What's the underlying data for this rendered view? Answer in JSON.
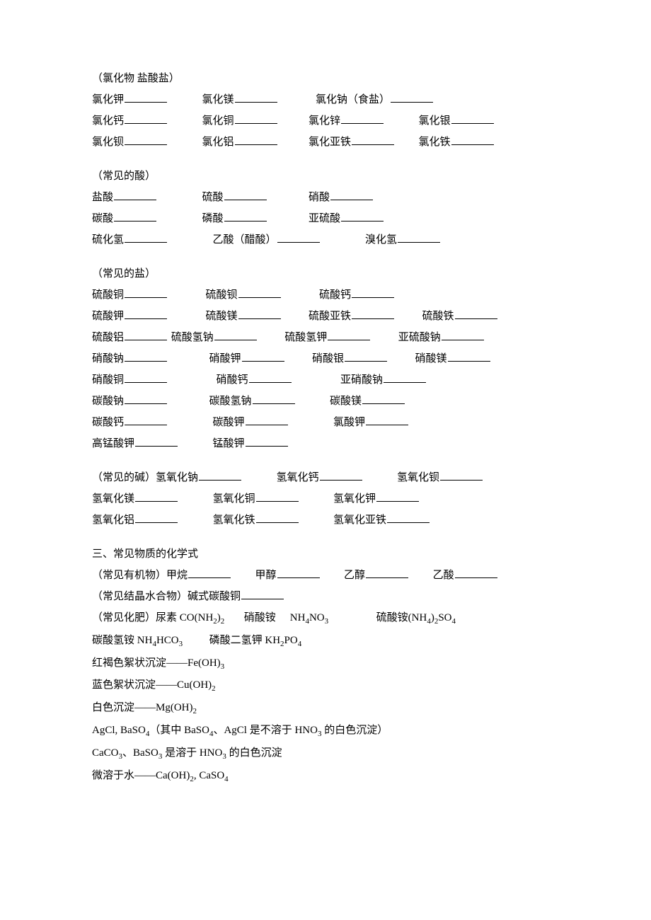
{
  "section_chlorides": {
    "title": "（氯化物 盐酸盐）",
    "row1": [
      "氯化钾",
      "氯化镁",
      "氯化钠（食盐）"
    ],
    "row2": [
      "氯化钙",
      "氯化铜",
      "氯化锌",
      "氯化银"
    ],
    "row3": [
      "氯化钡",
      "氯化铝",
      "氯化亚铁",
      "氯化铁"
    ]
  },
  "section_acids": {
    "title": "（常见的酸）",
    "row1": [
      "盐酸",
      "硫酸",
      "硝酸"
    ],
    "row2": [
      "碳酸",
      "磷酸",
      "亚硫酸"
    ],
    "row3": [
      "硫化氢",
      "乙酸（醋酸）",
      "溴化氢"
    ]
  },
  "section_salts": {
    "title": "（常见的盐）",
    "row1": [
      "硫酸铜",
      "硫酸钡",
      "硫酸钙"
    ],
    "row2": [
      "硫酸钾",
      "硫酸镁",
      "硫酸亚铁",
      "硫酸铁"
    ],
    "row3": [
      "硫酸铝",
      "硫酸氢钠",
      "硫酸氢钾",
      "亚硫酸钠"
    ],
    "row4": [
      "硝酸钠",
      "硝酸钾",
      "硝酸银",
      "硝酸镁"
    ],
    "row5": [
      "硝酸铜",
      "硝酸钙",
      "亚硝酸钠"
    ],
    "row6": [
      "碳酸钠",
      "碳酸氢钠",
      "碳酸镁"
    ],
    "row7": [
      "碳酸钙",
      "碳酸钾",
      "氯酸钾"
    ],
    "row8": [
      "高锰酸钾",
      "锰酸钾"
    ]
  },
  "section_bases": {
    "row1_prefix": "（常见的碱）",
    "row1": [
      "氢氧化钠",
      "氢氧化钙",
      "氢氧化钡"
    ],
    "row2": [
      "氢氧化镁",
      "氢氧化铜",
      "氢氧化钾"
    ],
    "row3": [
      "氢氧化铝",
      "氢氧化铁",
      "氢氧化亚铁"
    ]
  },
  "section_formulas": {
    "title": "三、常见物质的化学式",
    "organics_prefix": "（常见有机物）",
    "organics": [
      "甲烷",
      "甲醇",
      "乙醇",
      "乙酸"
    ],
    "hydrate_prefix": "（常见结晶水合物）",
    "hydrate": "碱式碳酸铜",
    "fert_prefix": "（常见化肥）",
    "fert1_name": "尿素 ",
    "fert1_formula": "CO(NH",
    "fert1_sub": "2",
    "fert1_tail": ")",
    "fert1_sub2": "2",
    "fert2_name": "硝酸铵",
    "fert2_formula_a": "NH",
    "fert2_sub_a": "4",
    "fert2_formula_b": "NO",
    "fert2_sub_b": "3",
    "fert3_name": "硫酸铵",
    "fert3_formula_a": "(NH",
    "fert3_sub_a": "4",
    "fert3_formula_b": ")",
    "fert3_sub_b": "2",
    "fert3_formula_c": "SO",
    "fert3_sub_c": "4",
    "fert_line2_a_name": "碳酸氢铵 ",
    "fert_line2_a_f": "NH",
    "fert_line2_a_s1": "4",
    "fert_line2_a_f2": "HCO",
    "fert_line2_a_s2": "3",
    "fert_line2_b_name": "磷酸二氢钾 ",
    "fert_line2_b_f": "KH",
    "fert_line2_b_s1": "2",
    "fert_line2_b_f2": "PO",
    "fert_line2_b_s2": "4",
    "p1_a": "红褐色絮状沉淀——Fe(OH)",
    "p1_s": "3",
    "p2_a": "蓝色絮状沉淀——Cu(OH)",
    "p2_s": "2",
    "p3_a": "白色沉淀——Mg(OH)",
    "p3_s": "2",
    "p4_a": "AgCl, BaSO",
    "p4_s1": "4",
    "p4_b": "（其中 BaSO",
    "p4_s2": "4",
    "p4_c": "、AgCl 是不溶于 HNO",
    "p4_s3": "3",
    "p4_d": " 的白色沉淀）",
    "p5_a": "CaCO",
    "p5_s1": "3",
    "p5_b": "、BaSO",
    "p5_s2": "3",
    "p5_c": " 是溶于 HNO",
    "p5_s3": "3",
    "p5_d": " 的白色沉淀",
    "p6_a": "微溶于水——Ca(OH)",
    "p6_s1": "2",
    "p6_b": ", CaSO",
    "p6_s2": "4"
  }
}
